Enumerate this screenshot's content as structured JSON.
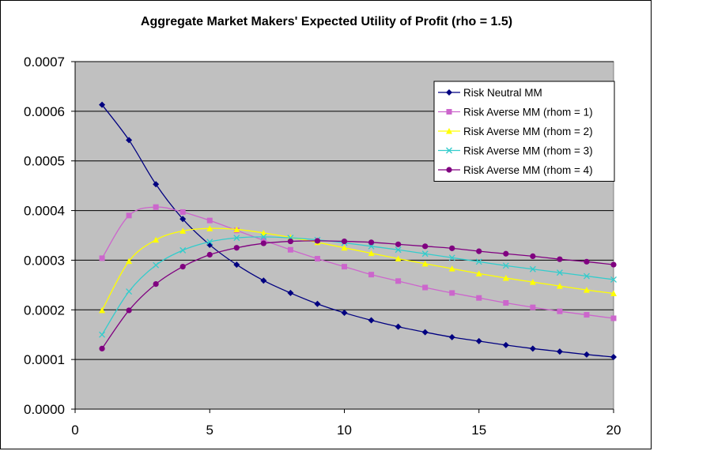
{
  "chart_data": {
    "type": "line",
    "title": "Aggregate Market Makers' Expected Utility of Profit (rho = 1.5)",
    "xlabel": "",
    "ylabel": "",
    "xlim": [
      0,
      20
    ],
    "ylim": [
      0,
      0.0007
    ],
    "x_ticks": [
      "0",
      "5",
      "10",
      "15",
      "20"
    ],
    "x_tick_values": [
      0,
      5,
      10,
      15,
      20
    ],
    "y_ticks": [
      "0.0000",
      "0.0001",
      "0.0002",
      "0.0003",
      "0.0004",
      "0.0005",
      "0.0006",
      "0.0007"
    ],
    "y_tick_values": [
      0,
      0.0001,
      0.0002,
      0.0003,
      0.0004,
      0.0005,
      0.0006,
      0.0007
    ],
    "grid": "horizontal",
    "plot_background": "#c0c0c0",
    "legend_position": "top-right",
    "x": [
      1,
      2,
      3,
      4,
      5,
      6,
      7,
      8,
      9,
      10,
      11,
      12,
      13,
      14,
      15,
      16,
      17,
      18,
      19,
      20
    ],
    "series": [
      {
        "name": "Risk Neutral MM",
        "color": "#000080",
        "marker": "diamond",
        "values": [
          0.000613,
          0.000542,
          0.000453,
          0.000383,
          0.000331,
          0.000291,
          0.000259,
          0.000234,
          0.000212,
          0.000194,
          0.000179,
          0.000166,
          0.000155,
          0.000145,
          0.000137,
          0.000129,
          0.000122,
          0.000116,
          0.00011,
          0.000105
        ]
      },
      {
        "name": "Risk Averse MM (rhom = 1)",
        "color": "#cc66cc",
        "marker": "square",
        "values": [
          0.000304,
          0.00039,
          0.000407,
          0.000397,
          0.00038,
          0.00036,
          0.00034,
          0.000321,
          0.000303,
          0.000287,
          0.000271,
          0.000258,
          0.000245,
          0.000234,
          0.000224,
          0.000214,
          0.000205,
          0.000197,
          0.00019,
          0.000183
        ]
      },
      {
        "name": "Risk Averse MM (rhom = 2)",
        "color": "#ffff00",
        "marker": "triangle",
        "values": [
          0.000199,
          0.000298,
          0.000341,
          0.000359,
          0.000364,
          0.000362,
          0.000355,
          0.000346,
          0.000336,
          0.000325,
          0.000314,
          0.000303,
          0.000293,
          0.000283,
          0.000273,
          0.000264,
          0.000256,
          0.000248,
          0.00024,
          0.000233
        ]
      },
      {
        "name": "Risk Averse MM (rhom = 3)",
        "color": "#33cccc",
        "marker": "x",
        "values": [
          0.00015,
          0.000237,
          0.00029,
          0.00032,
          0.000337,
          0.000345,
          0.000347,
          0.000345,
          0.000341,
          0.000335,
          0.000328,
          0.000321,
          0.000313,
          0.000305,
          0.000297,
          0.000289,
          0.000282,
          0.000275,
          0.000268,
          0.000261
        ]
      },
      {
        "name": "Risk Averse MM (rhom = 4)",
        "color": "#800080",
        "marker": "circle",
        "values": [
          0.000122,
          0.000199,
          0.000252,
          0.000287,
          0.000311,
          0.000325,
          0.000334,
          0.000338,
          0.000339,
          0.000338,
          0.000336,
          0.000332,
          0.000328,
          0.000324,
          0.000318,
          0.000313,
          0.000308,
          0.000302,
          0.000297,
          0.000291
        ]
      }
    ]
  }
}
